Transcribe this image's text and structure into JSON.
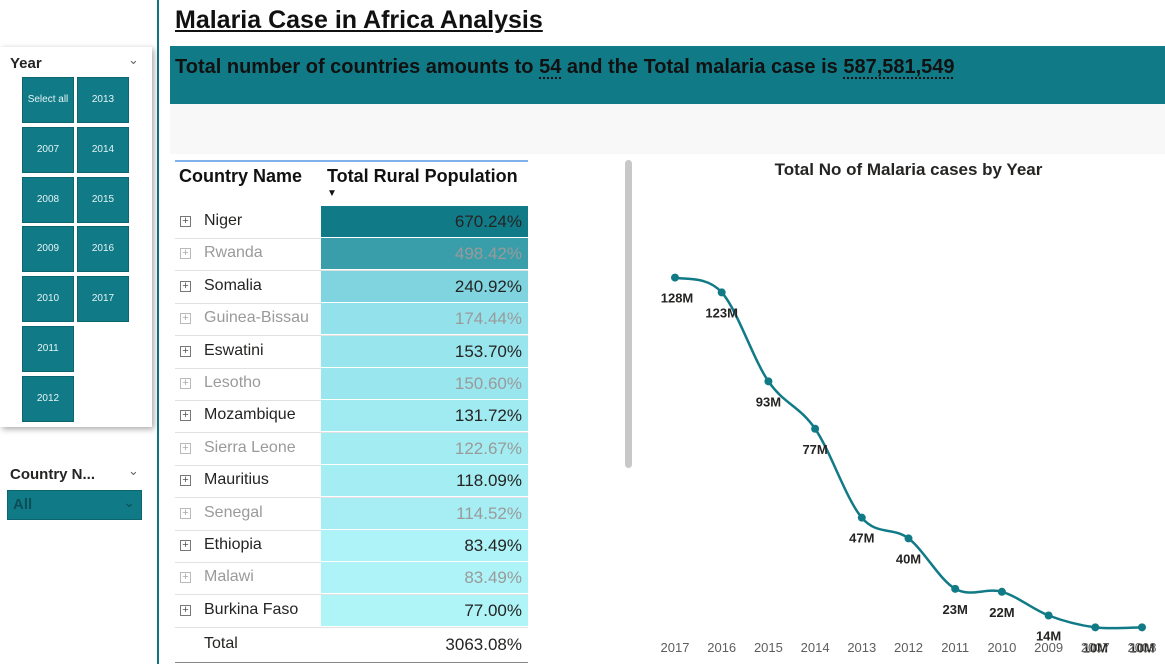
{
  "header": {
    "title": "Malaria Case in Africa Analysis",
    "banner_prefix": "Total number of countries amounts to",
    "country_count": "54",
    "banner_middle": "and the Total malaria case is",
    "total_cases": "587,581,549"
  },
  "year_slicer": {
    "title": "Year",
    "tiles": [
      "Select all",
      "2013",
      "2007",
      "2014",
      "2008",
      "2015",
      "2009",
      "2016",
      "2010",
      "2017",
      "2011",
      "2012"
    ]
  },
  "country_slicer": {
    "title": "Country N...",
    "selected": "All"
  },
  "table": {
    "col_country": "Country Name",
    "col_value": "Total Rural Population",
    "sort_icon": "sort-descending-icon",
    "rows": [
      {
        "country": "Niger",
        "value": "670.24%",
        "fill": "#117a87"
      },
      {
        "country": "Rwanda",
        "value": "498.42%",
        "fill": "#3a9eaa"
      },
      {
        "country": "Somalia",
        "value": "240.92%",
        "fill": "#7fd4df"
      },
      {
        "country": "Guinea-Bissau",
        "value": "174.44%",
        "fill": "#93e1ea"
      },
      {
        "country": "Eswatini",
        "value": "153.70%",
        "fill": "#99e5ee"
      },
      {
        "country": "Lesotho",
        "value": "150.60%",
        "fill": "#9ae6ee"
      },
      {
        "country": "Mozambique",
        "value": "131.72%",
        "fill": "#a0eaf1"
      },
      {
        "country": "Sierra Leone",
        "value": "122.67%",
        "fill": "#a3ecf2"
      },
      {
        "country": "Mauritius",
        "value": "118.09%",
        "fill": "#a4edf3"
      },
      {
        "country": "Senegal",
        "value": "114.52%",
        "fill": "#a6eef4"
      },
      {
        "country": "Ethiopia",
        "value": "83.49%",
        "fill": "#adf3f7"
      },
      {
        "country": "Malawi",
        "value": "83.49%",
        "fill": "#adf3f7"
      },
      {
        "country": "Burkina Faso",
        "value": "77.00%",
        "fill": "#aff5f8"
      }
    ],
    "total_label": "Total",
    "total_value": "3063.08%"
  },
  "chart_data": {
    "type": "line",
    "title": "Total No of Malaria cases by Year",
    "x": [
      "2017",
      "2016",
      "2015",
      "2014",
      "2013",
      "2012",
      "2011",
      "2010",
      "2009",
      "2007",
      "2008"
    ],
    "values": [
      128,
      123,
      93,
      77,
      47,
      40,
      23,
      22,
      14,
      10,
      10
    ],
    "data_labels": [
      "128M",
      "123M",
      "93M",
      "77M",
      "47M",
      "40M",
      "23M",
      "22M",
      "14M",
      "10M",
      "10M"
    ],
    "ylim": [
      0,
      140
    ],
    "line_color": "#117a87",
    "grid": false
  },
  "colors": {
    "accent": "#117a87",
    "banner": "#117a87"
  }
}
